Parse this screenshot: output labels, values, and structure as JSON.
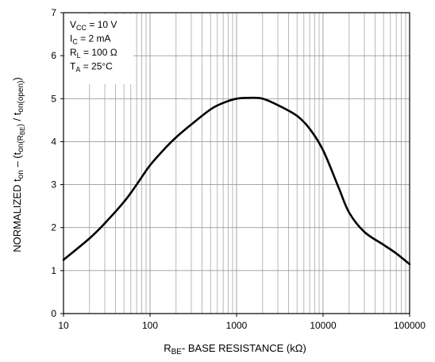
{
  "chart_data": {
    "type": "line",
    "xscale": "log",
    "xlim": [
      10,
      100000
    ],
    "ylim": [
      0,
      7
    ],
    "grid": true,
    "x_ticks": [
      10,
      100,
      1000,
      10000,
      100000
    ],
    "x_tick_labels": [
      "10",
      "100",
      "1000",
      "10000",
      "100000"
    ],
    "y_ticks": [
      0,
      1,
      2,
      3,
      4,
      5,
      6,
      7
    ],
    "y_tick_labels": [
      "0",
      "1",
      "2",
      "3",
      "4",
      "5",
      "6",
      "7"
    ],
    "xlabel": {
      "main": "R",
      "sub": "BE",
      "rest": "- BASE RESISTANCE (kΩ)"
    },
    "ylabel": {
      "p1": "NORMALIZED t",
      "s1": "on",
      "p2": " – (t",
      "s2": "on(R",
      "s2sub": "BE",
      "s2end": ")",
      "p3": " / t",
      "s3": "on(open)",
      "p4": ")"
    },
    "annotations": [
      {
        "main": "V",
        "sub": "CC",
        "rest": " = 10 V"
      },
      {
        "main": "I",
        "sub": "C",
        "rest": " = 2 mA"
      },
      {
        "main": "R",
        "sub": "L",
        "rest": " = 100 Ω"
      },
      {
        "main": "T",
        "sub": "A",
        "rest": " = 25°C"
      }
    ],
    "series": [
      {
        "x": [
          10,
          20,
          30,
          50,
          70,
          100,
          150,
          200,
          300,
          500,
          700,
          1000,
          1500,
          2000,
          3000,
          5000,
          7000,
          10000,
          15000,
          20000,
          30000,
          50000,
          70000,
          100000
        ],
        "values": [
          1.25,
          1.75,
          2.1,
          2.6,
          3.0,
          3.45,
          3.85,
          4.1,
          4.4,
          4.75,
          4.9,
          5.0,
          5.02,
          5.0,
          4.85,
          4.6,
          4.3,
          3.8,
          2.95,
          2.35,
          1.9,
          1.6,
          1.4,
          1.15
        ]
      }
    ],
    "colors": {
      "line": "#000000",
      "grid": "#9a9a9a",
      "axis": "#000000"
    }
  }
}
